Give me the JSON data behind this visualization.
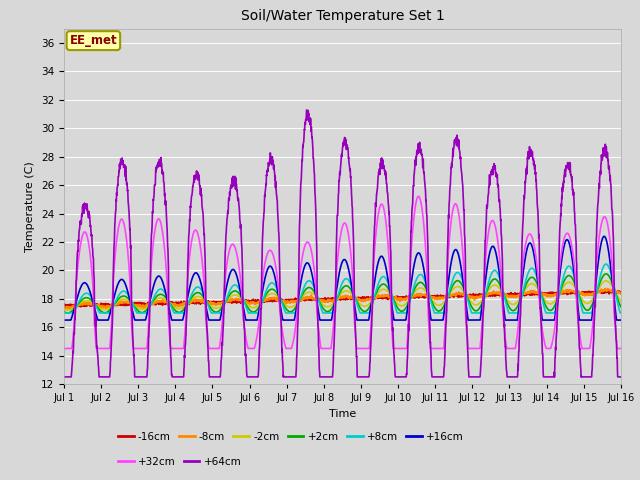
{
  "title": "Soil/Water Temperature Set 1",
  "xlabel": "Time",
  "ylabel": "Temperature (C)",
  "ylim": [
    12,
    37
  ],
  "yticks": [
    12,
    14,
    16,
    18,
    20,
    22,
    24,
    26,
    28,
    30,
    32,
    34,
    36
  ],
  "xlim": [
    0,
    15
  ],
  "xtick_labels": [
    "Jul 1",
    "Jul 2",
    "Jul 3",
    "Jul 4",
    "Jul 5",
    "Jul 6",
    "Jul 7",
    "Jul 8",
    "Jul 9",
    "Jul 10",
    "Jul 11",
    "Jul 12",
    "Jul 13",
    "Jul 14",
    "Jul 15",
    "Jul 16"
  ],
  "background_color": "#d8d8d8",
  "plot_bg_color": "#d8d8d8",
  "series_order": [
    "-16cm",
    "-8cm",
    "-2cm",
    "+2cm",
    "+8cm",
    "+16cm",
    "+32cm",
    "+64cm"
  ],
  "series": {
    "-16cm": {
      "color": "#cc0000",
      "lw": 1.2
    },
    "-8cm": {
      "color": "#ff8800",
      "lw": 1.2
    },
    "-2cm": {
      "color": "#cccc00",
      "lw": 1.2
    },
    "+2cm": {
      "color": "#00aa00",
      "lw": 1.2
    },
    "+8cm": {
      "color": "#00cccc",
      "lw": 1.2
    },
    "+16cm": {
      "color": "#0000cc",
      "lw": 1.2
    },
    "+32cm": {
      "color": "#ff44ff",
      "lw": 1.2
    },
    "+64cm": {
      "color": "#9900bb",
      "lw": 1.2
    }
  },
  "annotation_text": "EE_met",
  "annotation_color": "#880000",
  "annotation_bg": "#ffffaa",
  "annotation_border": "#999900",
  "legend_row1": [
    "-16cm",
    "-8cm",
    "-2cm",
    "+2cm",
    "+8cm",
    "+16cm"
  ],
  "legend_row2": [
    "+32cm",
    "+64cm"
  ]
}
